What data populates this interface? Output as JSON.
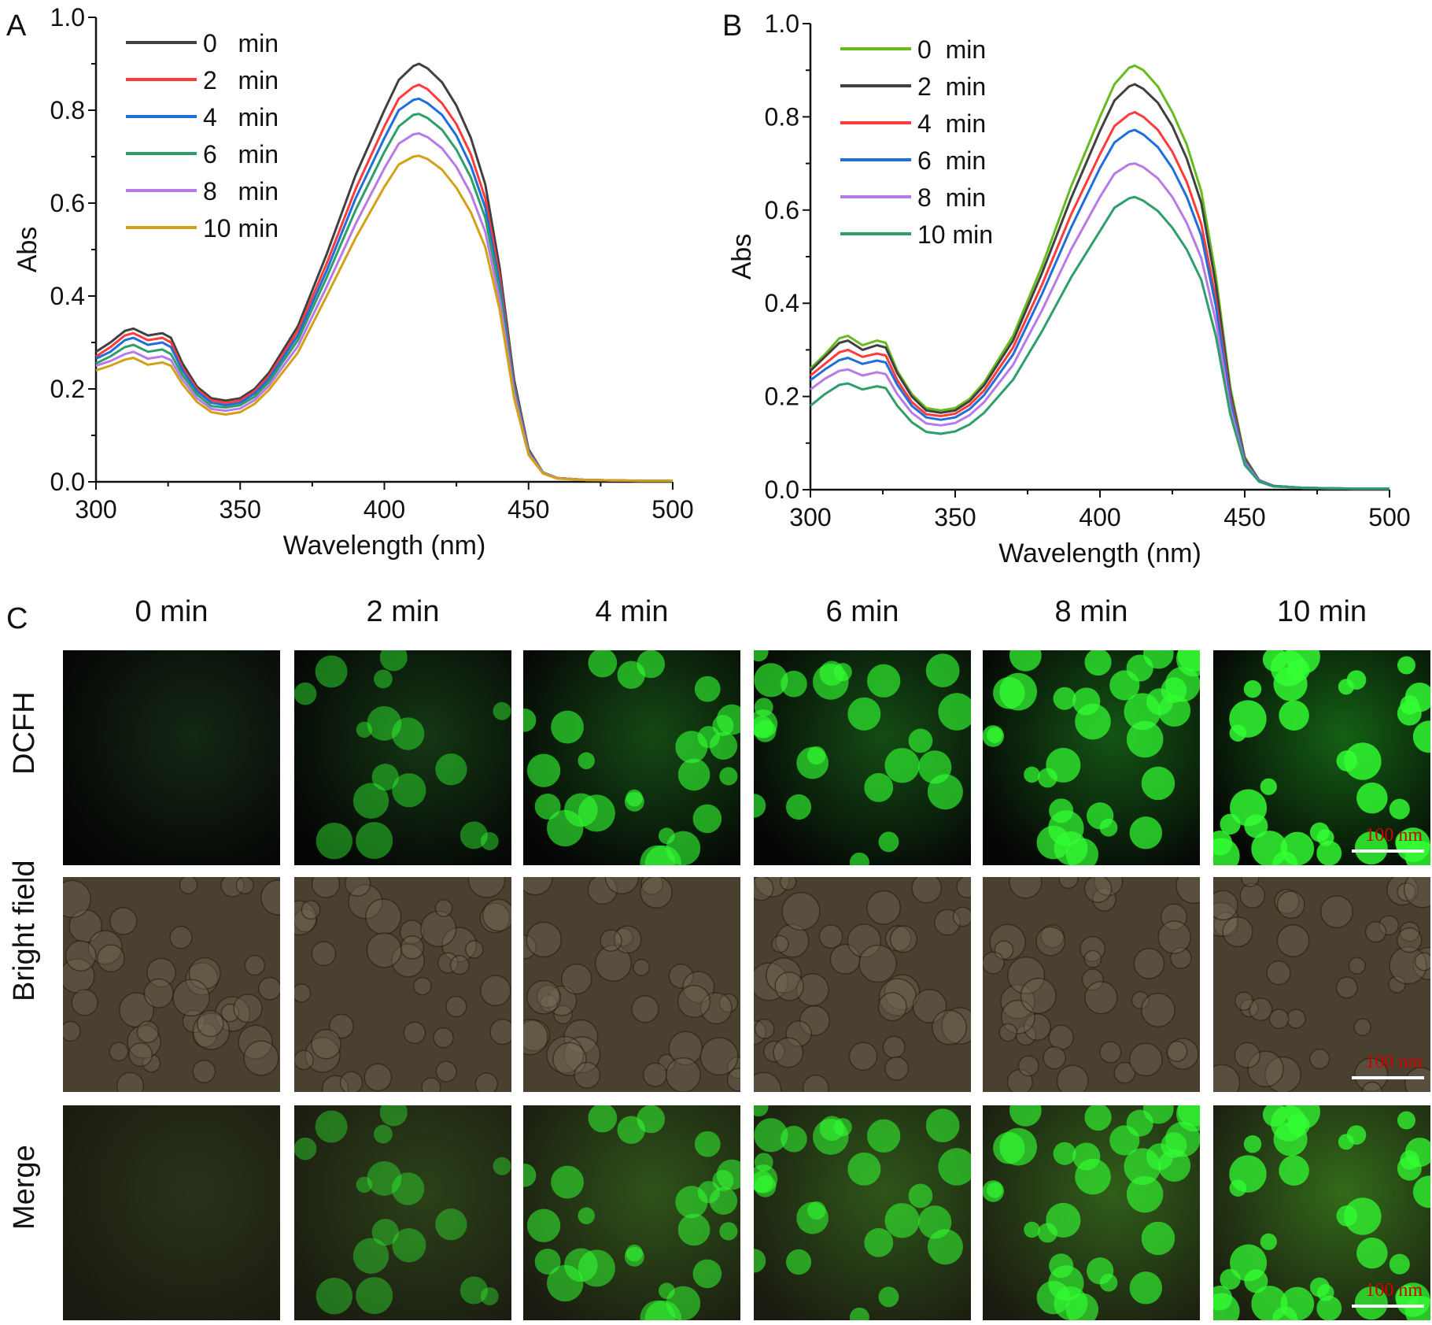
{
  "panel_labels": {
    "a": "A",
    "b": "B",
    "c": "C"
  },
  "chart_data": [
    {
      "panel": "A",
      "type": "line",
      "xlabel": "Wavelength (nm)",
      "ylabel": "Abs",
      "xlim": [
        300,
        500
      ],
      "ylim": [
        0,
        1.0
      ],
      "xticks": [
        "300",
        "350",
        "400",
        "450",
        "500"
      ],
      "yticks": [
        "0.0",
        "0.2",
        "0.4",
        "0.6",
        "0.8",
        "1.0"
      ],
      "legend_position": "top-left",
      "x": [
        300,
        305,
        310,
        313,
        318,
        323,
        326,
        330,
        335,
        340,
        345,
        350,
        355,
        360,
        370,
        380,
        390,
        400,
        405,
        410,
        412,
        415,
        420,
        425,
        430,
        435,
        440,
        445,
        450,
        455,
        460,
        470,
        480,
        490,
        500
      ],
      "series": [
        {
          "name": "0   min",
          "color": "#404040",
          "values": [
            0.28,
            0.3,
            0.325,
            0.33,
            0.315,
            0.32,
            0.31,
            0.255,
            0.205,
            0.18,
            0.175,
            0.18,
            0.2,
            0.235,
            0.335,
            0.49,
            0.66,
            0.8,
            0.865,
            0.895,
            0.9,
            0.89,
            0.86,
            0.81,
            0.74,
            0.64,
            0.46,
            0.22,
            0.07,
            0.02,
            0.008,
            0.004,
            0.003,
            0.002,
            0.002
          ]
        },
        {
          "name": "2   min",
          "color": "#ff3b3b",
          "values": [
            0.27,
            0.29,
            0.315,
            0.32,
            0.305,
            0.31,
            0.3,
            0.245,
            0.2,
            0.175,
            0.17,
            0.175,
            0.195,
            0.228,
            0.325,
            0.47,
            0.63,
            0.765,
            0.825,
            0.85,
            0.855,
            0.845,
            0.815,
            0.77,
            0.705,
            0.61,
            0.44,
            0.21,
            0.067,
            0.02,
            0.008,
            0.004,
            0.003,
            0.002,
            0.002
          ]
        },
        {
          "name": "4   min",
          "color": "#1e6fd9",
          "values": [
            0.265,
            0.28,
            0.305,
            0.31,
            0.295,
            0.3,
            0.29,
            0.24,
            0.195,
            0.17,
            0.165,
            0.17,
            0.19,
            0.222,
            0.315,
            0.455,
            0.61,
            0.74,
            0.8,
            0.822,
            0.825,
            0.815,
            0.79,
            0.745,
            0.68,
            0.59,
            0.425,
            0.205,
            0.065,
            0.02,
            0.008,
            0.004,
            0.003,
            0.002,
            0.002
          ]
        },
        {
          "name": "6   min",
          "color": "#2e9e6b",
          "values": [
            0.255,
            0.27,
            0.29,
            0.295,
            0.28,
            0.285,
            0.275,
            0.23,
            0.188,
            0.163,
            0.16,
            0.165,
            0.183,
            0.215,
            0.305,
            0.44,
            0.585,
            0.71,
            0.765,
            0.79,
            0.792,
            0.783,
            0.758,
            0.715,
            0.655,
            0.568,
            0.41,
            0.198,
            0.063,
            0.02,
            0.008,
            0.004,
            0.003,
            0.002,
            0.002
          ]
        },
        {
          "name": "8   min",
          "color": "#b87ae6",
          "values": [
            0.25,
            0.26,
            0.275,
            0.28,
            0.265,
            0.27,
            0.262,
            0.22,
            0.18,
            0.157,
            0.153,
            0.158,
            0.176,
            0.207,
            0.292,
            0.42,
            0.555,
            0.675,
            0.728,
            0.748,
            0.75,
            0.742,
            0.718,
            0.678,
            0.62,
            0.538,
            0.39,
            0.19,
            0.061,
            0.019,
            0.008,
            0.004,
            0.003,
            0.002,
            0.002
          ]
        },
        {
          "name": "10 min",
          "color": "#d4a017",
          "values": [
            0.24,
            0.25,
            0.263,
            0.267,
            0.252,
            0.257,
            0.25,
            0.21,
            0.172,
            0.15,
            0.145,
            0.15,
            0.168,
            0.198,
            0.278,
            0.4,
            0.525,
            0.635,
            0.683,
            0.7,
            0.702,
            0.695,
            0.672,
            0.633,
            0.58,
            0.505,
            0.37,
            0.18,
            0.058,
            0.018,
            0.007,
            0.004,
            0.003,
            0.002,
            0.002
          ]
        }
      ]
    },
    {
      "panel": "B",
      "type": "line",
      "xlabel": "Wavelength (nm)",
      "ylabel": "Abs",
      "xlim": [
        300,
        500
      ],
      "ylim": [
        0,
        1.0
      ],
      "xticks": [
        "300",
        "350",
        "400",
        "450",
        "500"
      ],
      "yticks": [
        "0.0",
        "0.2",
        "0.4",
        "0.6",
        "0.8",
        "1.0"
      ],
      "legend_position": "top-left",
      "x": [
        300,
        305,
        310,
        313,
        318,
        323,
        326,
        330,
        335,
        340,
        345,
        350,
        355,
        360,
        370,
        380,
        390,
        400,
        405,
        410,
        412,
        415,
        420,
        425,
        430,
        435,
        440,
        445,
        450,
        455,
        460,
        470,
        480,
        490,
        500
      ],
      "series": [
        {
          "name": "0  min",
          "color": "#66bb1e",
          "values": [
            0.26,
            0.29,
            0.325,
            0.33,
            0.31,
            0.32,
            0.315,
            0.255,
            0.205,
            0.175,
            0.17,
            0.175,
            0.195,
            0.23,
            0.33,
            0.48,
            0.65,
            0.8,
            0.87,
            0.905,
            0.91,
            0.9,
            0.865,
            0.81,
            0.74,
            0.64,
            0.46,
            0.22,
            0.07,
            0.02,
            0.008,
            0.004,
            0.003,
            0.002,
            0.002
          ]
        },
        {
          "name": "2  min",
          "color": "#404040",
          "values": [
            0.255,
            0.285,
            0.315,
            0.32,
            0.3,
            0.31,
            0.305,
            0.25,
            0.2,
            0.17,
            0.165,
            0.17,
            0.19,
            0.224,
            0.32,
            0.465,
            0.625,
            0.77,
            0.835,
            0.865,
            0.87,
            0.86,
            0.83,
            0.78,
            0.71,
            0.615,
            0.44,
            0.21,
            0.067,
            0.02,
            0.008,
            0.004,
            0.003,
            0.002,
            0.002
          ]
        },
        {
          "name": "4  min",
          "color": "#ff3b3b",
          "values": [
            0.245,
            0.27,
            0.295,
            0.3,
            0.285,
            0.292,
            0.288,
            0.235,
            0.188,
            0.162,
            0.158,
            0.163,
            0.182,
            0.213,
            0.305,
            0.44,
            0.59,
            0.72,
            0.78,
            0.805,
            0.81,
            0.8,
            0.772,
            0.725,
            0.66,
            0.57,
            0.41,
            0.198,
            0.063,
            0.019,
            0.008,
            0.004,
            0.003,
            0.002,
            0.002
          ]
        },
        {
          "name": "6  min",
          "color": "#1e6fd9",
          "values": [
            0.235,
            0.258,
            0.278,
            0.283,
            0.27,
            0.277,
            0.273,
            0.225,
            0.18,
            0.155,
            0.15,
            0.155,
            0.173,
            0.203,
            0.29,
            0.42,
            0.562,
            0.69,
            0.745,
            0.768,
            0.772,
            0.762,
            0.735,
            0.69,
            0.628,
            0.545,
            0.395,
            0.19,
            0.061,
            0.019,
            0.008,
            0.004,
            0.003,
            0.002,
            0.002
          ]
        },
        {
          "name": "8  min",
          "color": "#b87ae6",
          "values": [
            0.215,
            0.238,
            0.255,
            0.258,
            0.245,
            0.252,
            0.248,
            0.205,
            0.165,
            0.142,
            0.138,
            0.143,
            0.16,
            0.188,
            0.268,
            0.385,
            0.515,
            0.628,
            0.678,
            0.698,
            0.7,
            0.692,
            0.668,
            0.628,
            0.572,
            0.497,
            0.362,
            0.175,
            0.057,
            0.018,
            0.007,
            0.004,
            0.003,
            0.002,
            0.002
          ]
        },
        {
          "name": "10 min",
          "color": "#2e9e6b",
          "values": [
            0.18,
            0.205,
            0.225,
            0.228,
            0.215,
            0.222,
            0.218,
            0.18,
            0.145,
            0.124,
            0.12,
            0.125,
            0.14,
            0.165,
            0.236,
            0.34,
            0.455,
            0.555,
            0.605,
            0.625,
            0.628,
            0.62,
            0.598,
            0.562,
            0.515,
            0.45,
            0.33,
            0.162,
            0.053,
            0.017,
            0.007,
            0.004,
            0.003,
            0.002,
            0.002
          ]
        }
      ]
    }
  ],
  "microscopy": {
    "columns": [
      "0 min",
      "2 min",
      "4 min",
      "6 min",
      "8 min",
      "10 min"
    ],
    "rows": [
      "DCFH",
      "Bright field",
      "Merge"
    ],
    "scale_bar_label": "100 nm",
    "fluorescence_intensity": [
      0.0,
      0.25,
      0.55,
      0.6,
      0.75,
      0.95
    ],
    "colors": {
      "fluorescence": "#33ff33",
      "bright_field": "#4a4030",
      "dark": "#050505",
      "scale_text": "#d00000"
    }
  }
}
